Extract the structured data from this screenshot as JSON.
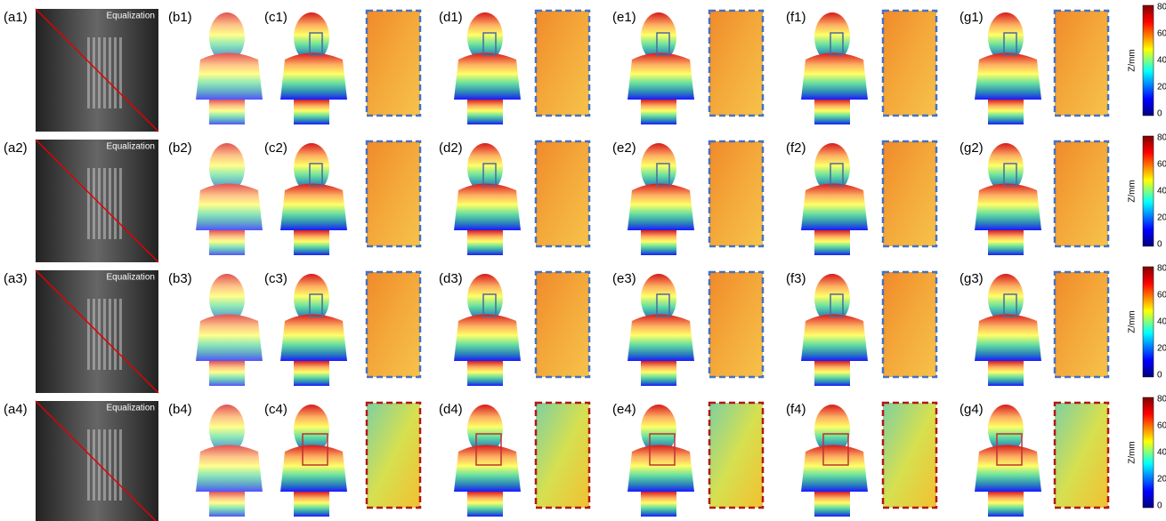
{
  "rows": [
    {
      "labels": [
        "(a1)",
        "(b1)",
        "(c1)",
        "(d1)",
        "(e1)",
        "(f1)",
        "(g1)"
      ],
      "overlay": "Equalization",
      "colorbar": {
        "label": "Z/mm",
        "ticks": [
          80,
          60,
          40,
          20,
          0
        ]
      }
    },
    {
      "labels": [
        "(a2)",
        "(b2)",
        "(c2)",
        "(d2)",
        "(e2)",
        "(f2)",
        "(g2)"
      ],
      "overlay": "Equalization",
      "colorbar": {
        "label": "Z/mm",
        "ticks": [
          80,
          60,
          40,
          20,
          0
        ]
      }
    },
    {
      "labels": [
        "(a3)",
        "(b3)",
        "(c3)",
        "(d3)",
        "(e3)",
        "(f3)",
        "(g3)"
      ],
      "overlay": "Equalization",
      "colorbar": {
        "label": "Z/mm",
        "ticks": [
          80,
          60,
          40,
          20,
          0
        ]
      }
    },
    {
      "labels": [
        "(a4)",
        "(b4)",
        "(c4)",
        "(d4)",
        "(e4)",
        "(f4)",
        "(g4)"
      ],
      "overlay": "Equalization",
      "colorbar": {
        "label": "Z/mm",
        "ticks": [
          80,
          60,
          40,
          20,
          0
        ]
      }
    }
  ]
}
